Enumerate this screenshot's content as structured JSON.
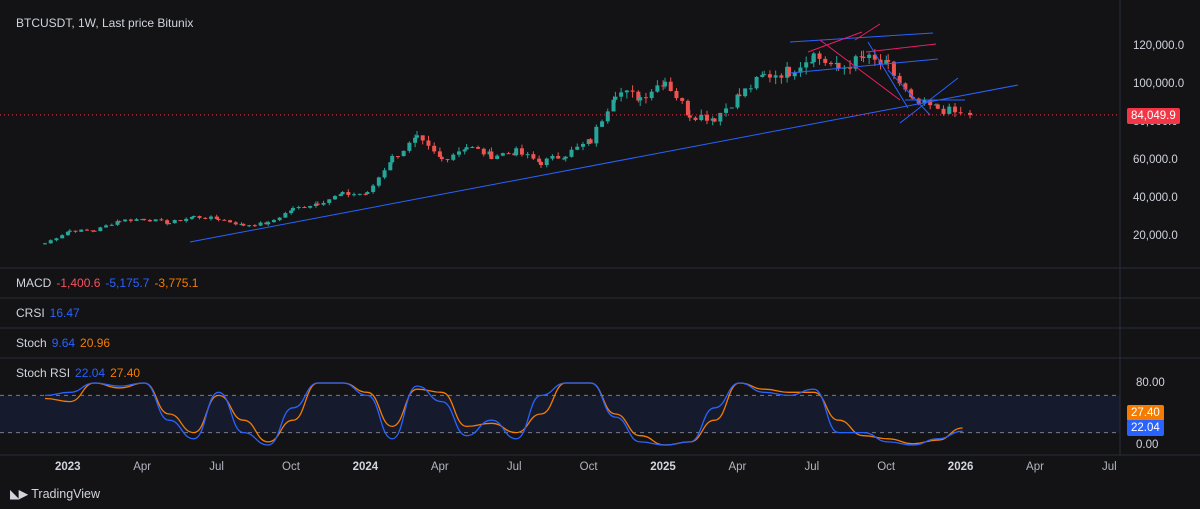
{
  "header": {
    "title": "BTCUSDT, 1W, Last price Bitunix"
  },
  "last_price": {
    "label": "84,049.9",
    "color": "#f23645"
  },
  "indicators": {
    "macd": {
      "name": "MACD",
      "v1": "-1,400.6",
      "v2": "-5,175.7",
      "v3": "-3,775.1",
      "c1": "#f7525f",
      "c2": "#2962ff",
      "c3": "#f57c00"
    },
    "crsi": {
      "name": "CRSI",
      "v1": "16.47"
    },
    "stoch": {
      "name": "Stoch",
      "v1": "9.64",
      "v2": "20.96"
    },
    "stoch_rsi": {
      "name": "Stoch RSI",
      "v1": "22.04",
      "v2": "27.40",
      "tag_k": "22.04",
      "tag_d": "27.40"
    }
  },
  "price_axis": [
    "120,000.0",
    "100,000.0",
    "80,000.0",
    "60,000.0",
    "40,000.0",
    "20,000.0"
  ],
  "rsi_axis": [
    "80.00",
    "0.00"
  ],
  "time_axis": [
    {
      "t": "2023",
      "bold": true
    },
    {
      "t": "Apr",
      "bold": false
    },
    {
      "t": "Jul",
      "bold": false
    },
    {
      "t": "Oct",
      "bold": false
    },
    {
      "t": "2024",
      "bold": true
    },
    {
      "t": "Apr",
      "bold": false
    },
    {
      "t": "Jul",
      "bold": false
    },
    {
      "t": "Oct",
      "bold": false
    },
    {
      "t": "2025",
      "bold": true
    },
    {
      "t": "Apr",
      "bold": false
    },
    {
      "t": "Jul",
      "bold": false
    },
    {
      "t": "Oct",
      "bold": false
    },
    {
      "t": "2026",
      "bold": true
    },
    {
      "t": "Apr",
      "bold": false
    },
    {
      "t": "Jul",
      "bold": false
    }
  ],
  "brand": {
    "name": "TradingView"
  },
  "chart_data": {
    "type": "candlestick",
    "symbol": "BTCUSDT",
    "interval": "1W",
    "ylim": [
      0,
      130000
    ],
    "grid": false,
    "colors": {
      "up": "#26a69a",
      "down": "#ef5350",
      "trendline": "#2962ff",
      "k_line": "#2962ff",
      "d_line": "#f57c00"
    },
    "monthly_close": [
      {
        "m": "2022-12",
        "c": 16500
      },
      {
        "m": "2023-01",
        "c": 23100
      },
      {
        "m": "2023-02",
        "c": 23200
      },
      {
        "m": "2023-03",
        "c": 28500
      },
      {
        "m": "2023-04",
        "c": 29300
      },
      {
        "m": "2023-05",
        "c": 27200
      },
      {
        "m": "2023-06",
        "c": 30500
      },
      {
        "m": "2023-07",
        "c": 29300
      },
      {
        "m": "2023-08",
        "c": 26000
      },
      {
        "m": "2023-09",
        "c": 27000
      },
      {
        "m": "2023-10",
        "c": 34500
      },
      {
        "m": "2023-11",
        "c": 37700
      },
      {
        "m": "2023-12",
        "c": 42300
      },
      {
        "m": "2024-01",
        "c": 42600
      },
      {
        "m": "2024-02",
        "c": 61500
      },
      {
        "m": "2024-03",
        "c": 71300
      },
      {
        "m": "2024-04",
        "c": 60600
      },
      {
        "m": "2024-05",
        "c": 67500
      },
      {
        "m": "2024-06",
        "c": 62700
      },
      {
        "m": "2024-07",
        "c": 64600
      },
      {
        "m": "2024-08",
        "c": 59000
      },
      {
        "m": "2024-09",
        "c": 63300
      },
      {
        "m": "2024-10",
        "c": 70200
      },
      {
        "m": "2024-11",
        "c": 96400
      },
      {
        "m": "2024-12",
        "c": 93400
      },
      {
        "m": "2025-01",
        "c": 102400
      },
      {
        "m": "2025-02",
        "c": 84300
      },
      {
        "m": "2025-03",
        "c": 82500
      },
      {
        "m": "2025-04",
        "c": 94200
      },
      {
        "m": "2025-05",
        "c": 104600
      },
      {
        "m": "2025-06",
        "c": 107100
      },
      {
        "m": "2025-07",
        "c": 115700
      },
      {
        "m": "2025-08",
        "c": 108200
      },
      {
        "m": "2025-09",
        "c": 114000
      },
      {
        "m": "2025-10",
        "c": 109500
      },
      {
        "m": "2025-11",
        "c": 90400
      },
      {
        "m": "2025-12",
        "c": 87600
      },
      {
        "m": "2026-01",
        "c": 84050
      }
    ],
    "stoch_rsi_monthly": [
      {
        "m": "2022-12",
        "k": 80,
        "d": 75
      },
      {
        "m": "2023-01",
        "k": 85,
        "d": 70
      },
      {
        "m": "2023-02",
        "k": 100,
        "d": 100
      },
      {
        "m": "2023-03",
        "k": 95,
        "d": 92
      },
      {
        "m": "2023-04",
        "k": 100,
        "d": 100
      },
      {
        "m": "2023-05",
        "k": 40,
        "d": 50
      },
      {
        "m": "2023-06",
        "k": 10,
        "d": 20
      },
      {
        "m": "2023-07",
        "k": 85,
        "d": 80
      },
      {
        "m": "2023-08",
        "k": 20,
        "d": 40
      },
      {
        "m": "2023-09",
        "k": 0,
        "d": 5
      },
      {
        "m": "2023-10",
        "k": 60,
        "d": 40
      },
      {
        "m": "2023-11",
        "k": 100,
        "d": 100
      },
      {
        "m": "2023-12",
        "k": 100,
        "d": 100
      },
      {
        "m": "2024-01",
        "k": 80,
        "d": 85
      },
      {
        "m": "2024-02",
        "k": 10,
        "d": 30
      },
      {
        "m": "2024-03",
        "k": 95,
        "d": 90
      },
      {
        "m": "2024-04",
        "k": 70,
        "d": 85
      },
      {
        "m": "2024-05",
        "k": 15,
        "d": 30
      },
      {
        "m": "2024-06",
        "k": 40,
        "d": 35
      },
      {
        "m": "2024-07",
        "k": 10,
        "d": 20
      },
      {
        "m": "2024-08",
        "k": 80,
        "d": 50
      },
      {
        "m": "2024-09",
        "k": 100,
        "d": 100
      },
      {
        "m": "2024-10",
        "k": 100,
        "d": 100
      },
      {
        "m": "2024-11",
        "k": 45,
        "d": 50
      },
      {
        "m": "2024-12",
        "k": 5,
        "d": 15
      },
      {
        "m": "2025-01",
        "k": 0,
        "d": 0
      },
      {
        "m": "2025-02",
        "k": 5,
        "d": 5
      },
      {
        "m": "2025-03",
        "k": 60,
        "d": 40
      },
      {
        "m": "2025-04",
        "k": 100,
        "d": 100
      },
      {
        "m": "2025-05",
        "k": 85,
        "d": 90
      },
      {
        "m": "2025-06",
        "k": 80,
        "d": 85
      },
      {
        "m": "2025-07",
        "k": 90,
        "d": 85
      },
      {
        "m": "2025-08",
        "k": 20,
        "d": 40
      },
      {
        "m": "2025-09",
        "k": 20,
        "d": 15
      },
      {
        "m": "2025-10",
        "k": 5,
        "d": 10
      },
      {
        "m": "2025-11",
        "k": 0,
        "d": 2
      },
      {
        "m": "2025-12",
        "k": 10,
        "d": 8
      },
      {
        "m": "2026-01",
        "k": 22.04,
        "d": 27.4
      }
    ],
    "stoch_rsi_bands": [
      80,
      20
    ],
    "stoch_rsi_range": [
      0,
      100
    ]
  }
}
